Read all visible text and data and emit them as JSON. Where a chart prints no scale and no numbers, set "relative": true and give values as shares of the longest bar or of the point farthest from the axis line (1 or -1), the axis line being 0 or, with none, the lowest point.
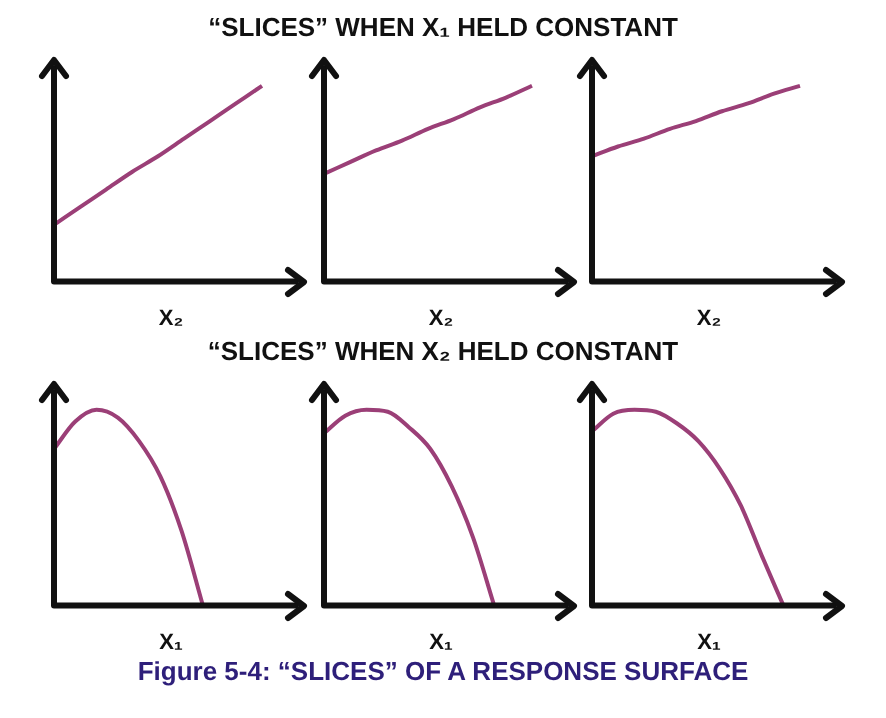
{
  "chart_data": [
    {
      "type": "line",
      "title": "“SLICES” WHEN X₁ HELD CONSTANT",
      "xlabel": "X₂",
      "relative": true,
      "marker": "none",
      "tick_labels": false,
      "color": "#9b3f77",
      "categories": [
        null,
        null,
        null,
        null,
        null,
        null,
        null,
        null,
        null,
        null
      ],
      "values": [
        0.29,
        0.38,
        0.47,
        0.56,
        0.64,
        0.73,
        0.82,
        0.91,
        1.0,
        null
      ]
    },
    {
      "type": "line",
      "xlabel": "X₂",
      "relative": true,
      "marker": "none",
      "tick_labels": false,
      "color": "#9b3f77",
      "categories": [
        null,
        null,
        null,
        null,
        null,
        null,
        null,
        null,
        null,
        null
      ],
      "values": [
        0.55,
        0.61,
        0.67,
        0.72,
        0.78,
        0.83,
        0.89,
        0.94,
        1.0,
        null
      ]
    },
    {
      "type": "line",
      "xlabel": "X₂",
      "relative": true,
      "marker": "none",
      "tick_labels": false,
      "color": "#9b3f77",
      "categories": [
        null,
        null,
        null,
        null,
        null,
        null,
        null,
        null,
        null,
        null
      ],
      "values": [
        0.64,
        0.69,
        0.73,
        0.78,
        0.82,
        0.87,
        0.91,
        0.96,
        1.0,
        null
      ]
    },
    {
      "type": "line",
      "title": "“SLICES” WHEN X₂ HELD CONSTANT",
      "xlabel": "X₁",
      "relative": true,
      "marker": "none",
      "tick_labels": false,
      "color": "#9b3f77",
      "categories": [
        null,
        null,
        null,
        null,
        null,
        null,
        null,
        null,
        null,
        null,
        null,
        null
      ],
      "values": [
        0.8,
        0.94,
        1.0,
        0.96,
        0.84,
        0.66,
        0.38,
        0.0,
        null,
        null,
        null,
        null
      ]
    },
    {
      "type": "line",
      "xlabel": "X₁",
      "relative": true,
      "marker": "none",
      "tick_labels": false,
      "color": "#9b3f77",
      "categories": [
        null,
        null,
        null,
        null,
        null,
        null,
        null,
        null,
        null,
        null,
        null,
        null
      ],
      "values": [
        0.88,
        0.97,
        1.0,
        0.99,
        0.91,
        0.8,
        0.61,
        0.35,
        0.0,
        null,
        null,
        null
      ]
    },
    {
      "type": "line",
      "xlabel": "X₁",
      "relative": true,
      "marker": "none",
      "tick_labels": false,
      "color": "#9b3f77",
      "categories": [
        null,
        null,
        null,
        null,
        null,
        null,
        null,
        null,
        null,
        null,
        null,
        null
      ],
      "values": [
        0.89,
        0.98,
        1.0,
        0.99,
        0.93,
        0.84,
        0.7,
        0.51,
        0.25,
        0.0,
        null,
        null
      ],
      "annotations": [
        "Figure 5-4: “SLICES” OF A RESPONSE SURFACE"
      ]
    }
  ]
}
